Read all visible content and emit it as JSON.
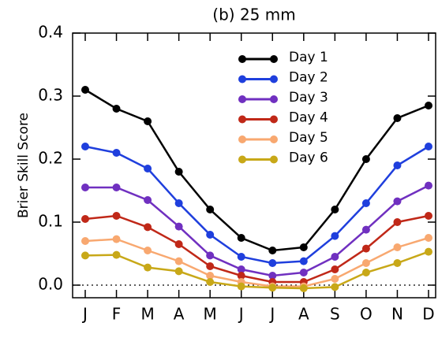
{
  "chart_data": {
    "type": "line",
    "title": "(b) 25 mm",
    "y_label": "Brier Skill Score",
    "categories": [
      "J",
      "F",
      "M",
      "A",
      "M",
      "J",
      "J",
      "A",
      "S",
      "O",
      "N",
      "D"
    ],
    "ylim": [
      -0.02,
      0.4
    ],
    "yticks": [
      {
        "value": 0,
        "label": "0.0"
      },
      0.1,
      0.2,
      0.3,
      0.4
    ],
    "zero_line": true,
    "series": [
      {
        "name": "Day 1",
        "color": "#000000",
        "values": [
          0.31,
          0.28,
          0.26,
          0.18,
          0.12,
          0.075,
          0.055,
          0.06,
          0.12,
          0.2,
          0.265,
          0.285
        ]
      },
      {
        "name": "Day 2",
        "color": "#1f3fdd",
        "values": [
          0.22,
          0.21,
          0.185,
          0.13,
          0.08,
          0.045,
          0.035,
          0.038,
          0.078,
          0.13,
          0.19,
          0.22
        ]
      },
      {
        "name": "Day 3",
        "color": "#7030c0",
        "values": [
          0.155,
          0.155,
          0.135,
          0.093,
          0.047,
          0.025,
          0.015,
          0.02,
          0.045,
          0.088,
          0.133,
          0.158
        ]
      },
      {
        "name": "Day 4",
        "color": "#c02818",
        "values": [
          0.105,
          0.11,
          0.092,
          0.065,
          0.03,
          0.015,
          0.005,
          0.005,
          0.025,
          0.058,
          0.1,
          0.11
        ]
      },
      {
        "name": "Day 5",
        "color": "#f8a870",
        "values": [
          0.07,
          0.073,
          0.055,
          0.038,
          0.015,
          0.005,
          -0.002,
          -0.002,
          0.01,
          0.035,
          0.06,
          0.075
        ]
      },
      {
        "name": "Day 6",
        "color": "#c8a818",
        "values": [
          0.047,
          0.048,
          0.028,
          0.022,
          0.005,
          -0.002,
          -0.004,
          -0.005,
          -0.003,
          0.02,
          0.035,
          0.053
        ]
      }
    ]
  }
}
